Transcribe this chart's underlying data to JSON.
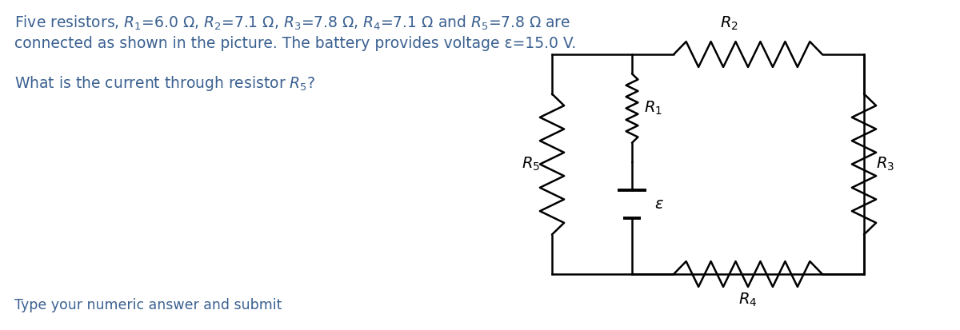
{
  "text_color": "#3a6090",
  "line_color": "#000000",
  "bg_color": "#ffffff",
  "title_line1": "Five resistors, $R_1$=6.0 Ω, $R_2$=7.1 Ω, $R_3$=7.8 Ω, $R_4$=7.1 Ω and $R_5$=7.8 Ω are",
  "title_line2": "connected as shown in the picture. The battery provides voltage ε=15.0 V.",
  "question": "What is the current through resistor $R_5$?",
  "footer": "Type your numeric answer and submit",
  "label_R1": "$R_1$",
  "label_R2": "$R_2$",
  "label_R3": "$R_3$",
  "label_R4": "$R_4$",
  "label_R5": "$R_5$",
  "label_eps": "ε",
  "font_size_text": 13.5,
  "font_size_label": 14
}
